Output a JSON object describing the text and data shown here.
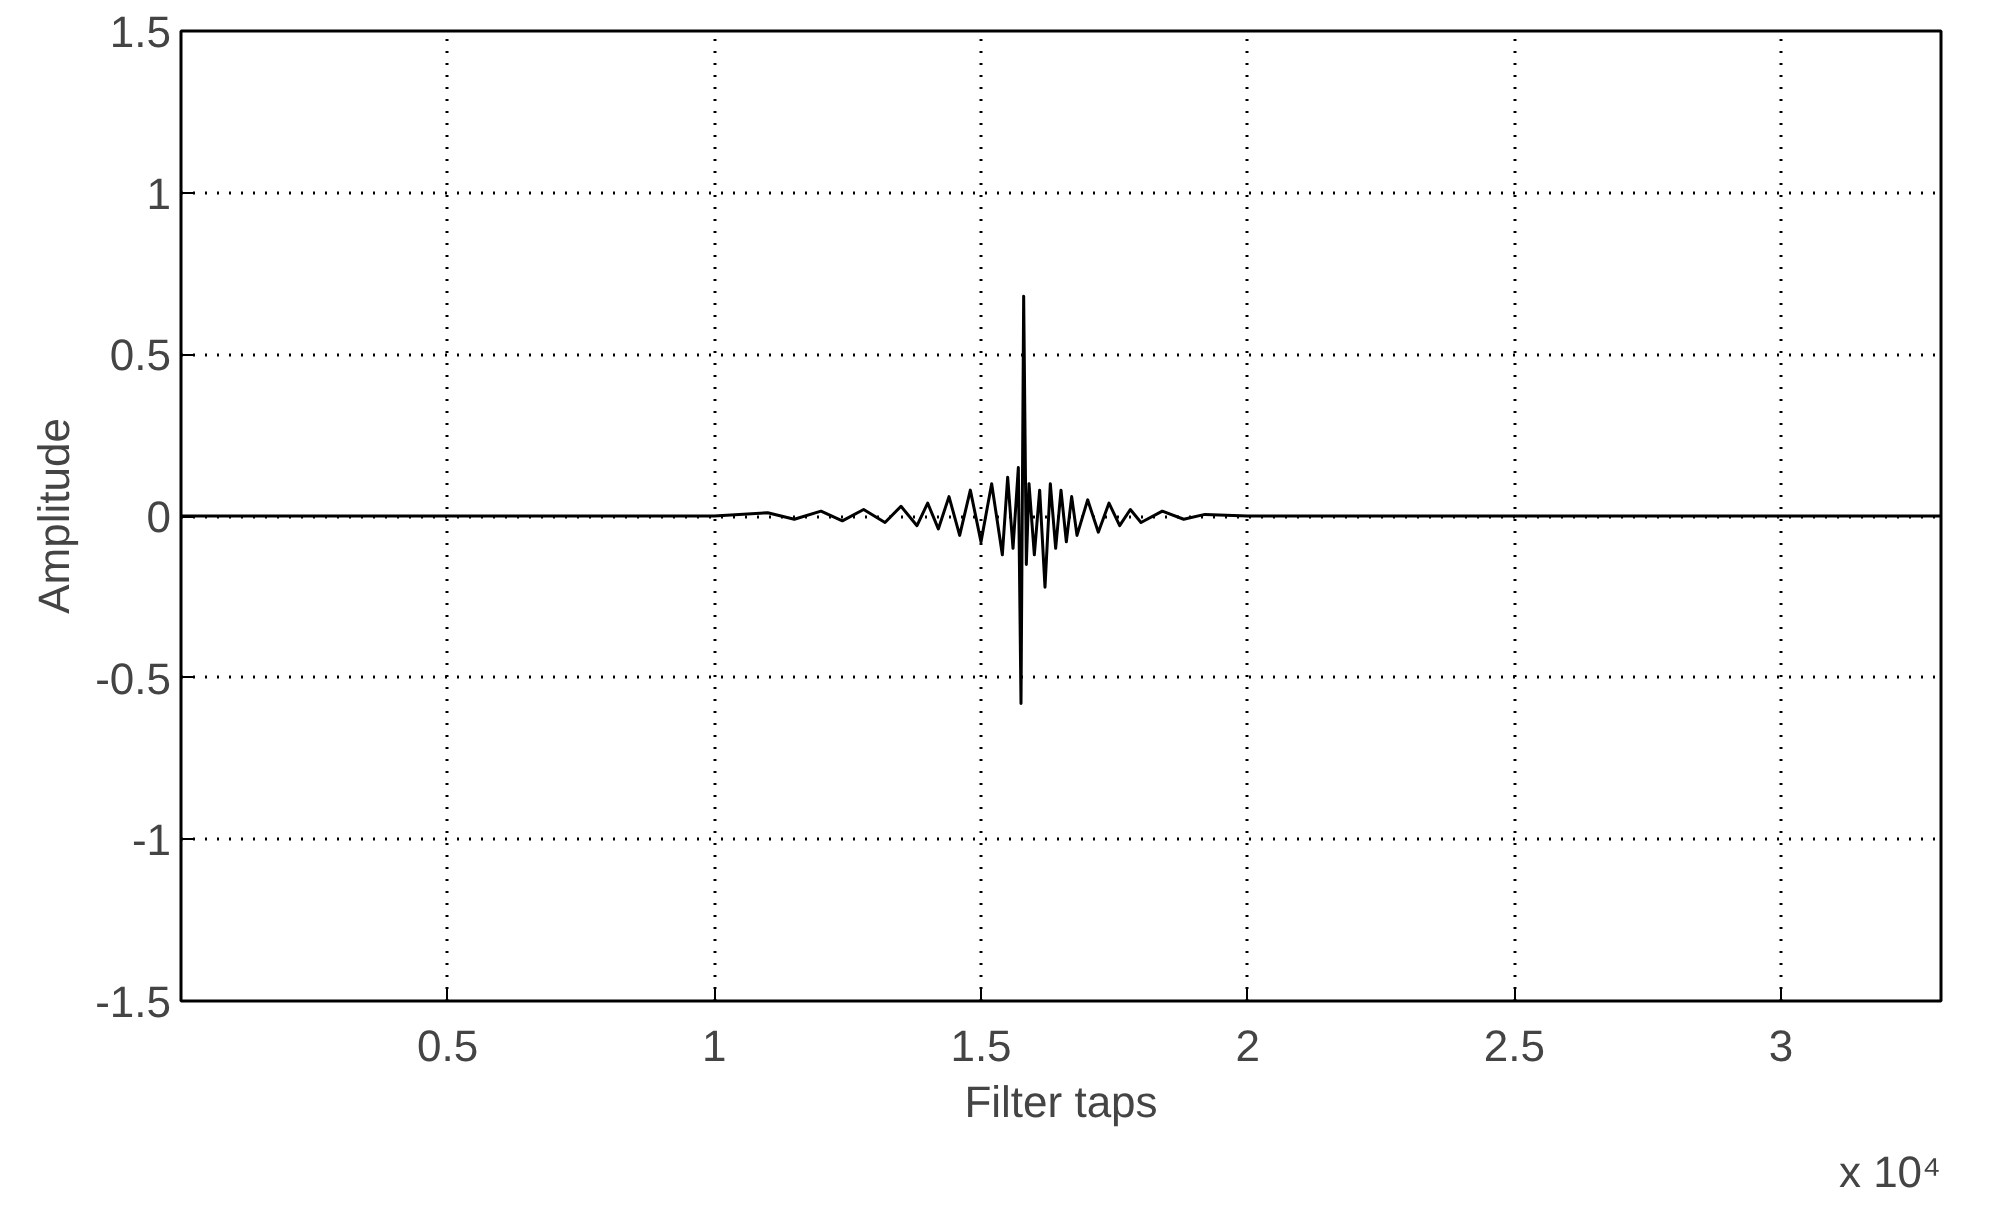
{
  "chart_data": {
    "type": "line",
    "xlabel": "Filter taps",
    "ylabel": "Amplitude",
    "annotations": [
      "x 10⁴"
    ],
    "x": [
      0,
      0.5,
      1,
      1.1,
      1.15,
      1.2,
      1.24,
      1.28,
      1.32,
      1.35,
      1.38,
      1.4,
      1.42,
      1.44,
      1.46,
      1.48,
      1.5,
      1.52,
      1.54,
      1.55,
      1.56,
      1.57,
      1.575,
      1.58,
      1.585,
      1.59,
      1.6,
      1.61,
      1.62,
      1.63,
      1.64,
      1.65,
      1.66,
      1.67,
      1.68,
      1.7,
      1.72,
      1.74,
      1.76,
      1.78,
      1.8,
      1.84,
      1.88,
      1.92,
      2,
      2.5,
      3.3
    ],
    "series": [
      {
        "color": "#000000",
        "values": [
          0,
          0,
          0,
          0.01,
          -0.01,
          0.015,
          -0.015,
          0.02,
          -0.02,
          0.03,
          -0.03,
          0.04,
          -0.04,
          0.06,
          -0.06,
          0.08,
          -0.08,
          0.1,
          -0.12,
          0.12,
          -0.1,
          0.15,
          -0.58,
          0.68,
          -0.15,
          0.1,
          -0.12,
          0.08,
          -0.22,
          0.1,
          -0.1,
          0.08,
          -0.08,
          0.06,
          -0.06,
          0.05,
          -0.05,
          0.04,
          -0.03,
          0.02,
          -0.02,
          0.015,
          -0.01,
          0.005,
          0,
          0,
          0
        ]
      }
    ],
    "xlim": [
      0,
      3.3
    ],
    "ylim": [
      -1.5,
      1.5
    ],
    "xticks": [
      0.5,
      1,
      1.5,
      2,
      2.5,
      3
    ],
    "yticks": [
      -1.5,
      -1,
      -0.5,
      0,
      0.5,
      1,
      1.5
    ],
    "grid": true,
    "line_style": "solid",
    "marker": "none"
  }
}
